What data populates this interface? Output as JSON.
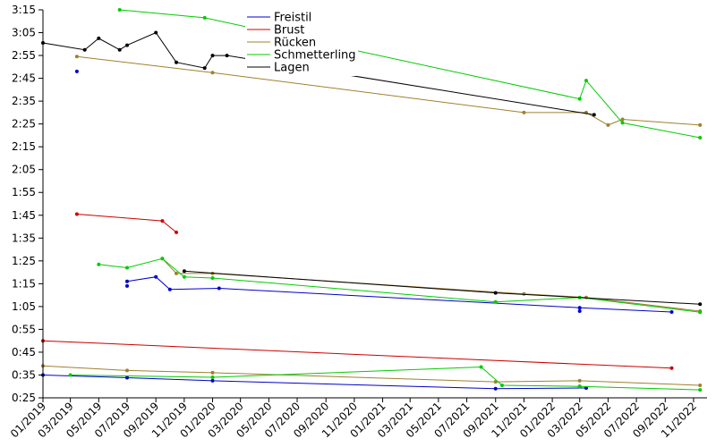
{
  "chart_data": {
    "type": "line",
    "title": "",
    "xlabel": "",
    "ylabel": "",
    "x_range": [
      "2019-01-01",
      "2022-11-30"
    ],
    "y_range": [
      "0:25",
      "3:15"
    ],
    "y_ticks": [
      "0:25",
      "0:35",
      "0:45",
      "0:55",
      "1:05",
      "1:15",
      "1:25",
      "1:35",
      "1:45",
      "1:55",
      "2:05",
      "2:15",
      "2:25",
      "2:35",
      "2:45",
      "2:55",
      "3:05",
      "3:15"
    ],
    "x_ticks": [
      {
        "label": "01/2019",
        "date": "2019-01-01"
      },
      {
        "label": "03/2019",
        "date": "2019-03-01"
      },
      {
        "label": "05/2019",
        "date": "2019-05-01"
      },
      {
        "label": "07/2019",
        "date": "2019-07-01"
      },
      {
        "label": "09/2019",
        "date": "2019-09-01"
      },
      {
        "label": "11/2019",
        "date": "2019-11-01"
      },
      {
        "label": "01/2020",
        "date": "2020-01-01"
      },
      {
        "label": "03/2020",
        "date": "2020-03-01"
      },
      {
        "label": "05/2020",
        "date": "2020-05-01"
      },
      {
        "label": "07/2020",
        "date": "2020-07-01"
      },
      {
        "label": "09/2020",
        "date": "2020-09-01"
      },
      {
        "label": "11/2020",
        "date": "2020-11-01"
      },
      {
        "label": "01/2021",
        "date": "2021-01-01"
      },
      {
        "label": "03/2021",
        "date": "2021-03-01"
      },
      {
        "label": "05/2021",
        "date": "2021-05-01"
      },
      {
        "label": "07/2021",
        "date": "2021-07-01"
      },
      {
        "label": "09/2021",
        "date": "2021-09-01"
      },
      {
        "label": "11/2021",
        "date": "2021-11-01"
      },
      {
        "label": "01/2022",
        "date": "2022-01-01"
      },
      {
        "label": "03/2022",
        "date": "2022-03-01"
      },
      {
        "label": "05/2022",
        "date": "2022-05-01"
      },
      {
        "label": "07/2022",
        "date": "2022-07-01"
      },
      {
        "label": "09/2022",
        "date": "2022-09-01"
      },
      {
        "label": "11/2022",
        "date": "2022-11-01"
      }
    ],
    "grid": false,
    "legend_position": "top-center",
    "series": [
      {
        "name": "Freistil",
        "color": "#0000cc",
        "lines": [
          [
            [
              "2019-01-01",
              "0:35.0"
            ],
            [
              "2019-07-01",
              "0:33.8"
            ],
            [
              "2020-01-01",
              "0:32.5"
            ],
            [
              "2021-09-01",
              "0:29.0"
            ],
            [
              "2022-03-15",
              "0:29.3"
            ]
          ],
          [
            [
              "2019-07-01",
              "1:16.0"
            ],
            [
              "2019-09-01",
              "1:18.0"
            ],
            [
              "2019-10-01",
              "1:12.5"
            ],
            [
              "2020-01-15",
              "1:13.0"
            ],
            [
              "2022-03-01",
              "1:04.5"
            ],
            [
              "2022-09-15",
              "1:02.6"
            ]
          ]
        ],
        "points": [
          [
            "2019-03-15",
            "2:48.0"
          ],
          [
            "2019-07-01",
            "1:14.0"
          ],
          [
            "2022-03-01",
            "1:03.0"
          ],
          [
            "2022-03-01",
            "0:30.0"
          ]
        ]
      },
      {
        "name": "Brust",
        "color": "#cc0000",
        "lines": [
          [
            [
              "2019-01-01",
              "0:50.0"
            ],
            [
              "2022-09-15",
              "0:38.0"
            ]
          ],
          [
            [
              "2019-03-15",
              "1:45.5"
            ],
            [
              "2019-09-15",
              "1:42.5"
            ],
            [
              "2019-10-15",
              "1:37.5"
            ]
          ]
        ],
        "points": []
      },
      {
        "name": "Rücken",
        "color": "#a08030",
        "lines": [
          [
            [
              "2019-01-01",
              "0:39.0"
            ],
            [
              "2019-07-01",
              "0:37.0"
            ],
            [
              "2020-01-01",
              "0:36.0"
            ],
            [
              "2021-09-01",
              "0:32.0"
            ],
            [
              "2022-03-01",
              "0:32.5"
            ],
            [
              "2022-11-15",
              "0:30.5"
            ]
          ],
          [
            [
              "2019-09-15",
              "1:26.0"
            ],
            [
              "2019-10-15",
              "1:19.5"
            ],
            [
              "2020-01-01",
              "1:19.5"
            ],
            [
              "2021-11-01",
              "1:10.5"
            ],
            [
              "2022-03-15",
              "1:09.0"
            ],
            [
              "2022-11-15",
              "1:03.0"
            ]
          ],
          [
            [
              "2019-03-15",
              "2:54.5"
            ],
            [
              "2020-01-01",
              "2:47.5"
            ],
            [
              "2021-11-01",
              "2:30.0"
            ],
            [
              "2022-03-15",
              "2:30.0"
            ],
            [
              "2022-05-01",
              "2:24.5"
            ],
            [
              "2022-06-01",
              "2:27.0"
            ],
            [
              "2022-11-15",
              "2:24.5"
            ]
          ]
        ],
        "points": []
      },
      {
        "name": "Schmetterling",
        "color": "#00cc00",
        "lines": [
          [
            [
              "2019-03-01",
              "0:35.0"
            ],
            [
              "2020-01-01",
              "0:34.0"
            ],
            [
              "2021-08-01",
              "0:38.5"
            ],
            [
              "2021-09-15",
              "0:30.5"
            ],
            [
              "2022-03-01",
              "0:30.0"
            ],
            [
              "2022-11-15",
              "0:28.5"
            ]
          ],
          [
            [
              "2019-05-01",
              "1:23.5"
            ],
            [
              "2019-07-01",
              "1:22.0"
            ],
            [
              "2019-09-15",
              "1:26.0"
            ],
            [
              "2019-11-01",
              "1:18.0"
            ],
            [
              "2020-01-01",
              "1:17.5"
            ],
            [
              "2021-09-01",
              "1:07.0"
            ],
            [
              "2022-03-01",
              "1:09.0"
            ],
            [
              "2022-11-15",
              "1:02.5"
            ]
          ],
          [
            [
              "2019-06-15",
              "3:15.0"
            ],
            [
              "2019-12-15",
              "3:11.5"
            ],
            [
              "2022-03-01",
              "2:36.0"
            ],
            [
              "2022-03-15",
              "2:44.0"
            ],
            [
              "2022-06-01",
              "2:25.5"
            ],
            [
              "2022-11-15",
              "2:19.0"
            ]
          ]
        ],
        "points": []
      },
      {
        "name": "Lagen",
        "color": "#000000",
        "lines": [
          [
            [
              "2019-11-01",
              "1:20.5"
            ],
            [
              "2021-09-01",
              "1:11.0"
            ],
            [
              "2022-11-15",
              "1:06.0"
            ]
          ],
          [
            [
              "2019-01-01",
              "3:00.5"
            ],
            [
              "2019-04-01",
              "2:57.5"
            ],
            [
              "2019-05-01",
              "3:02.5"
            ],
            [
              "2019-06-15",
              "2:57.5"
            ],
            [
              "2019-07-01",
              "2:59.5"
            ],
            [
              "2019-09-01",
              "3:05.0"
            ],
            [
              "2019-10-15",
              "2:52.0"
            ],
            [
              "2019-12-15",
              "2:49.5"
            ],
            [
              "2020-01-01",
              "2:55.0"
            ],
            [
              "2020-02-01",
              "2:55.0"
            ],
            [
              "2022-04-01",
              "2:29.0"
            ]
          ]
        ],
        "points": []
      }
    ]
  }
}
